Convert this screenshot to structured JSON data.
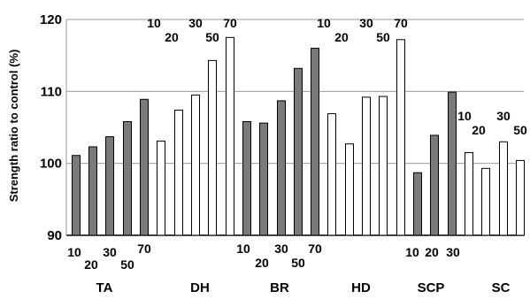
{
  "chart_data": {
    "type": "bar",
    "ylabel": "Strength ratio to control (%)",
    "ylim": [
      90,
      120
    ],
    "yticks": [
      90,
      100,
      110,
      120
    ],
    "grid": true,
    "colors": {
      "filled": "#7a7a7a",
      "open": "#ffffff",
      "stroke": "#000000",
      "grid": "#9a9a9a"
    },
    "groups": [
      {
        "name": "TA",
        "fill": "filled",
        "bars": [
          {
            "label": "10",
            "value": 101.1
          },
          {
            "label": "20",
            "value": 102.3
          },
          {
            "label": "30",
            "value": 103.7
          },
          {
            "label": "50",
            "value": 105.8
          },
          {
            "label": "70",
            "value": 108.9
          }
        ]
      },
      {
        "name": "DH",
        "fill": "open",
        "bars": [
          {
            "label": "10",
            "value": 103.1
          },
          {
            "label": "20",
            "value": 107.4
          },
          {
            "label": "30",
            "value": 109.5
          },
          {
            "label": "50",
            "value": 114.3
          },
          {
            "label": "70",
            "value": 117.5
          }
        ]
      },
      {
        "name": "BR",
        "fill": "filled",
        "bars": [
          {
            "label": "10",
            "value": 105.8
          },
          {
            "label": "20",
            "value": 105.6
          },
          {
            "label": "30",
            "value": 108.7
          },
          {
            "label": "50",
            "value": 113.2
          },
          {
            "label": "70",
            "value": 116.0
          }
        ]
      },
      {
        "name": "HD",
        "fill": "open",
        "bars": [
          {
            "label": "10",
            "value": 106.9
          },
          {
            "label": "20",
            "value": 102.7
          },
          {
            "label": "30",
            "value": 109.2
          },
          {
            "label": "50",
            "value": 109.3
          },
          {
            "label": "70",
            "value": 117.2
          }
        ]
      },
      {
        "name": "SCP",
        "fill": "filled",
        "bars": [
          {
            "label": "10",
            "value": 98.7
          },
          {
            "label": "20",
            "value": 103.9
          },
          {
            "label": "30",
            "value": 109.9
          }
        ]
      },
      {
        "name": "SC",
        "fill": "open",
        "bars": [
          {
            "label": "10",
            "value": 101.5
          },
          {
            "label": "20",
            "value": 99.3
          },
          {
            "label": "30",
            "value": 103.0
          },
          {
            "label": "50",
            "value": 100.4
          }
        ]
      }
    ]
  }
}
